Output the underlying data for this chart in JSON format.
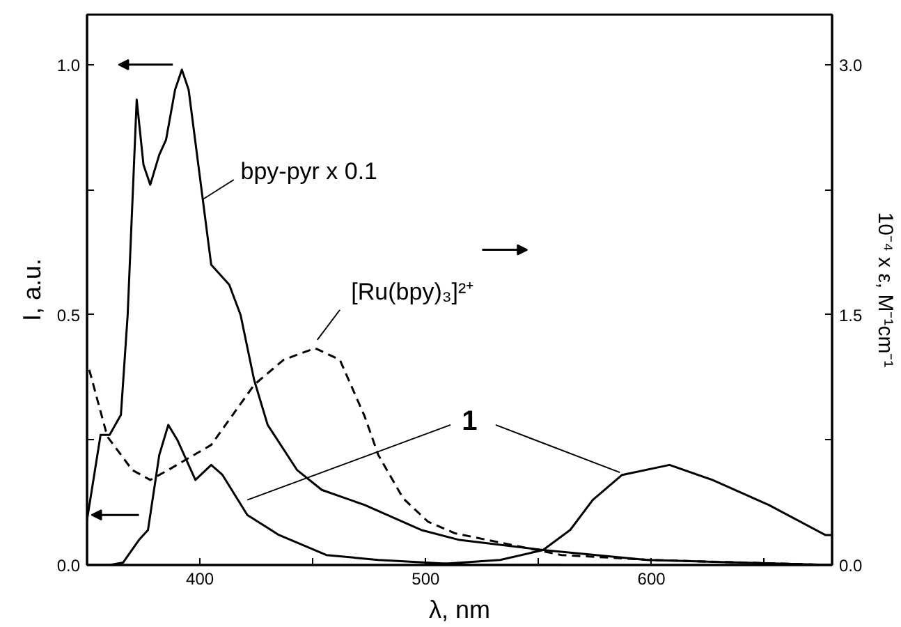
{
  "chart_data": {
    "type": "line",
    "xlabel": "λ, nm",
    "ylabel": "I, a.u.",
    "y2label": "10⁻⁴ x ε, M⁻¹cm⁻¹",
    "xlim": [
      350,
      680
    ],
    "xticks": [
      400,
      {
        "value": 450,
        "label": null
      },
      500,
      {
        "value": 550,
        "label": null
      },
      600,
      {
        "value": 650,
        "label": null
      }
    ],
    "ylim": [
      0,
      1.1
    ],
    "yticks": [
      {
        "value": 0,
        "label": "0.0"
      },
      {
        "value": 0.25,
        "label": null
      },
      0.5,
      {
        "value": 0.75,
        "label": null
      },
      {
        "value": 1,
        "label": "1.0"
      }
    ],
    "y2lim": [
      0,
      3.3
    ],
    "y2ticks": [
      {
        "value": 0,
        "label": "0.0"
      },
      {
        "value": 0.75,
        "label": null
      },
      1.5,
      {
        "value": 2.25,
        "label": null
      },
      {
        "value": 3,
        "label": "3.0"
      }
    ],
    "grid": false,
    "series": [
      {
        "color": "#000000",
        "line_style": "solid",
        "x": [
          350,
          356,
          360,
          365,
          368,
          372,
          375,
          378,
          382,
          385,
          389,
          392,
          395,
          401,
          405,
          413,
          418,
          424,
          430,
          443,
          454,
          473,
          498,
          515,
          552,
          598,
          680
        ],
        "values": [
          0.09,
          0.26,
          0.26,
          0.3,
          0.5,
          0.93,
          0.8,
          0.76,
          0.82,
          0.85,
          0.95,
          0.99,
          0.95,
          0.74,
          0.6,
          0.56,
          0.5,
          0.37,
          0.28,
          0.19,
          0.15,
          0.12,
          0.07,
          0.05,
          0.03,
          0.01,
          0.0
        ]
      },
      {
        "color": "#000000",
        "line_style": "dashed",
        "axis": "y2",
        "x": [
          351,
          359,
          370,
          378,
          386,
          405,
          424,
          437,
          451,
          462,
          473,
          479,
          490,
          501,
          513,
          560,
          600,
          680
        ],
        "values": [
          1.17,
          0.77,
          0.57,
          0.51,
          0.57,
          0.72,
          1.08,
          1.23,
          1.3,
          1.23,
          0.89,
          0.66,
          0.4,
          0.26,
          0.19,
          0.06,
          0.03,
          0.0
        ]
      },
      {
        "color": "#000000",
        "line_style": "solid",
        "x": [
          350,
          360,
          366,
          373,
          377,
          382,
          386,
          390,
          398,
          405,
          410,
          421,
          435,
          456,
          479,
          520,
          560
        ],
        "values": [
          0.0,
          0.0,
          0.005,
          0.05,
          0.07,
          0.22,
          0.28,
          0.25,
          0.17,
          0.2,
          0.18,
          0.1,
          0.06,
          0.02,
          0.01,
          0.0,
          0.0
        ]
      },
      {
        "color": "#000000",
        "line_style": "solid",
        "x": [
          500,
          533,
          552,
          564,
          574,
          587,
          608,
          627,
          652,
          677,
          680
        ],
        "values": [
          0.0,
          0.01,
          0.03,
          0.07,
          0.13,
          0.18,
          0.2,
          0.17,
          0.12,
          0.06,
          0.06
        ]
      }
    ],
    "annotations": [
      {
        "text": "bpy-pyr  x 0.1",
        "x": 401,
        "y": 0.73
      },
      "[Ru(bpy)₃]²⁺",
      {
        "text": "1",
        "x": 421,
        "y": 0.13
      }
    ]
  }
}
